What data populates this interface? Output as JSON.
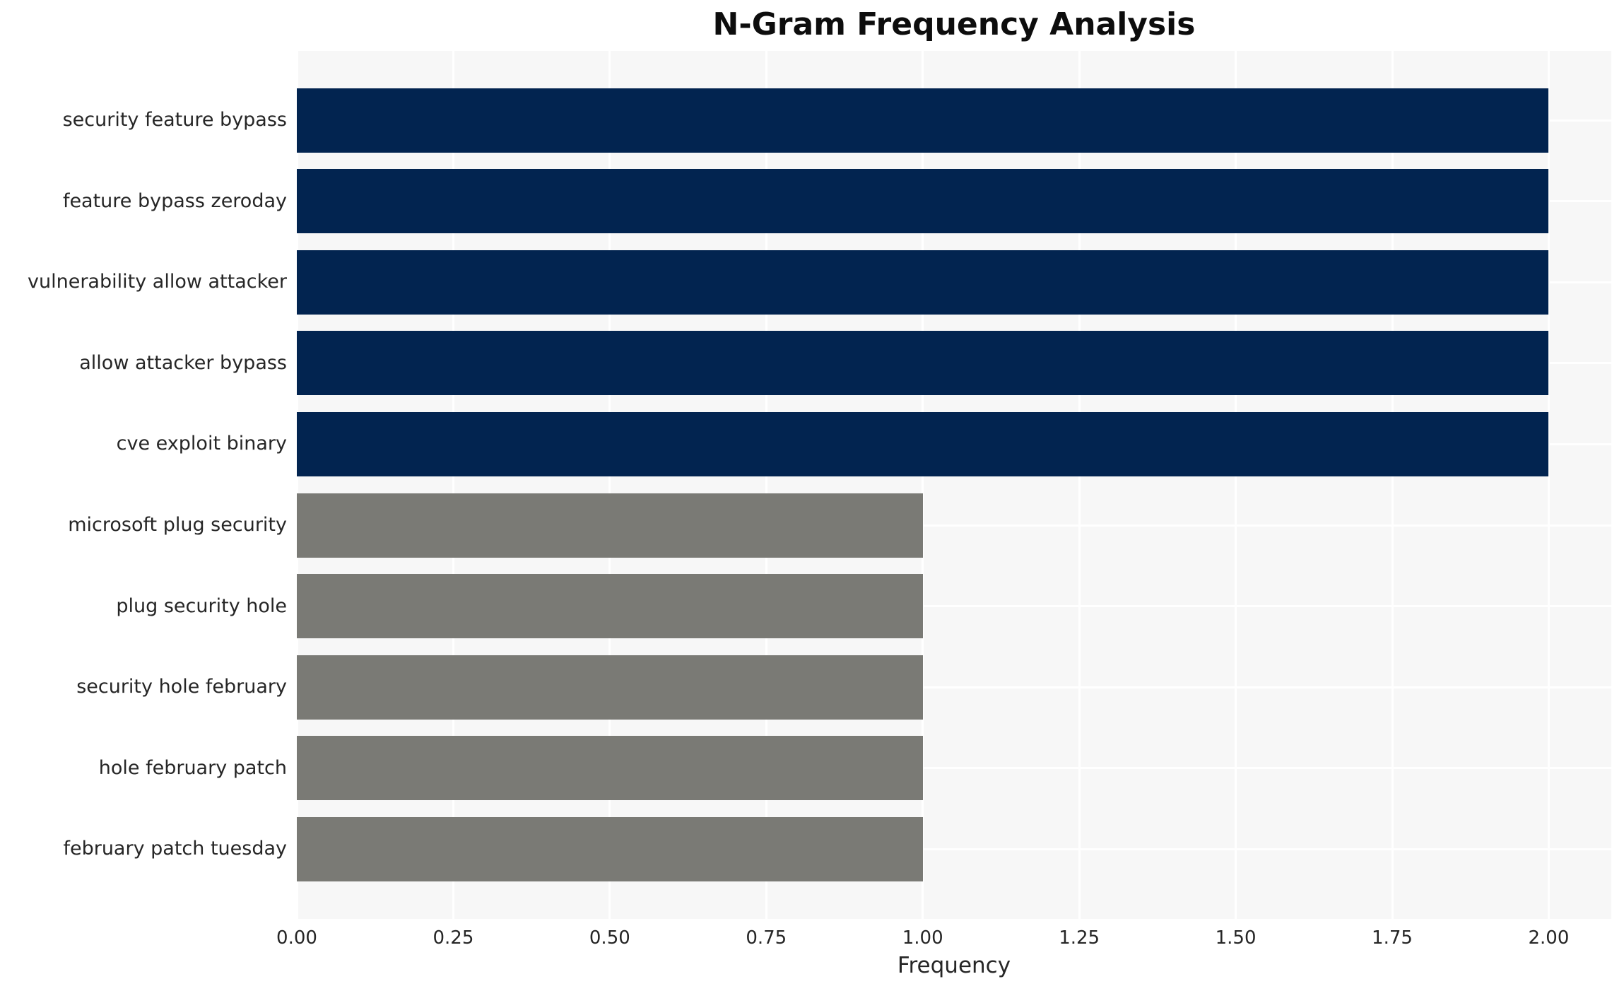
{
  "title": "N-Gram Frequency Analysis",
  "chart_data": {
    "type": "bar",
    "orientation": "horizontal",
    "title": "N-Gram Frequency Analysis",
    "xlabel": "Frequency",
    "ylabel": "",
    "categories": [
      "security feature bypass",
      "feature bypass zeroday",
      "vulnerability allow attacker",
      "allow attacker bypass",
      "cve exploit binary",
      "microsoft plug security",
      "plug security hole",
      "security hole february",
      "hole february patch",
      "february patch tuesday"
    ],
    "values": [
      2.0,
      2.0,
      2.0,
      2.0,
      2.0,
      1.0,
      1.0,
      1.0,
      1.0,
      1.0
    ],
    "bar_colors": [
      "#022450",
      "#022450",
      "#022450",
      "#022450",
      "#022450",
      "#7a7a75",
      "#7a7a75",
      "#7a7a75",
      "#7a7a75",
      "#7a7a75"
    ],
    "xlim": [
      0,
      2.1
    ],
    "xticks": [
      0,
      0.25,
      0.5,
      0.75,
      1.0,
      1.25,
      1.5,
      1.75,
      2.0
    ],
    "xtick_labels": [
      "0.00",
      "0.25",
      "0.50",
      "0.75",
      "1.00",
      "1.25",
      "1.50",
      "1.75",
      "2.00"
    ],
    "grid": true,
    "legend": "none",
    "colors": {
      "bar_high": "#022450",
      "bar_low": "#7a7a75",
      "plot_background": "#f7f7f7",
      "gridline": "#ffffff",
      "text": "#262626",
      "figure_background": "#ffffff"
    }
  }
}
